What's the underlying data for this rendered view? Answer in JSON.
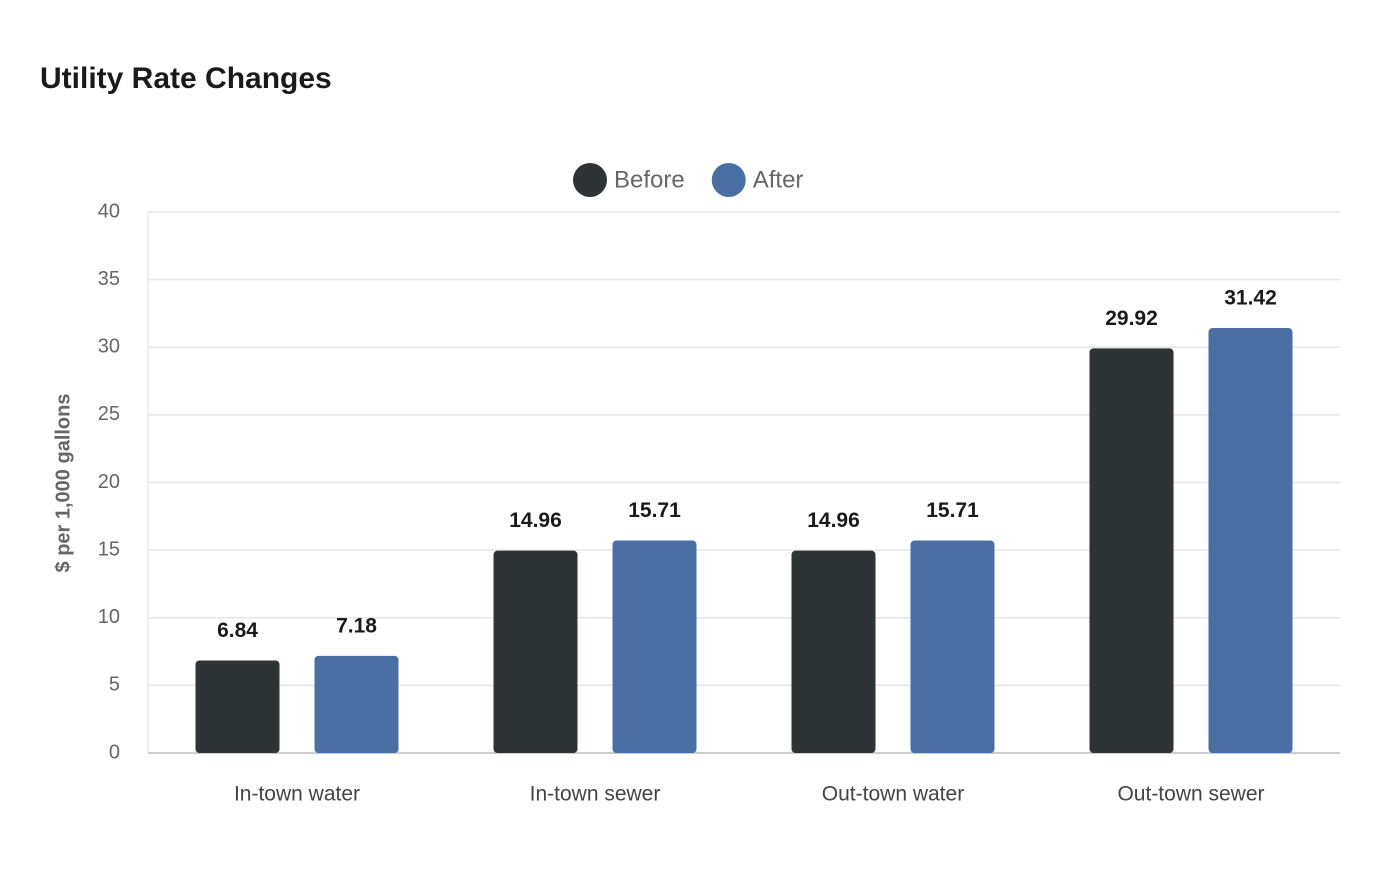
{
  "chart_data": {
    "type": "bar",
    "title": "Utility Rate Changes",
    "y_label": "$ per 1,000 gallons",
    "categories": [
      "In-town water",
      "In-town sewer",
      "Out-town water",
      "Out-town sewer"
    ],
    "series": [
      {
        "name": "Before",
        "color": "#2e3436",
        "values": [
          6.84,
          14.96,
          14.96,
          29.92
        ]
      },
      {
        "name": "After",
        "color": "#4a6fa5",
        "values": [
          7.18,
          15.71,
          15.71,
          31.42
        ]
      }
    ],
    "ylim": [
      0,
      40
    ],
    "yticks": [
      0,
      5,
      10,
      15,
      20,
      25,
      30,
      35,
      40
    ],
    "grid": true,
    "legend": "top"
  }
}
